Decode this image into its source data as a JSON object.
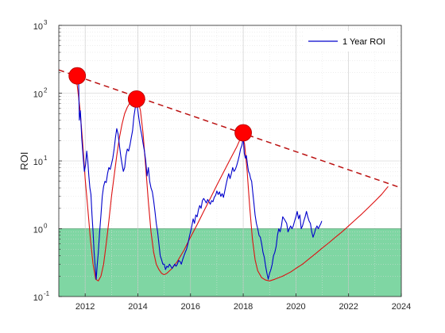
{
  "chart_data": {
    "type": "line",
    "title": "",
    "xlabel": "",
    "ylabel": "ROI",
    "xscale": "linear",
    "yscale": "log",
    "xlim": [
      2011,
      2024
    ],
    "ylim": [
      0.1,
      1000
    ],
    "x_ticks": [
      2012,
      2014,
      2016,
      2018,
      2020,
      2022,
      2024
    ],
    "y_ticks": [
      {
        "value": 0.1,
        "base": "10",
        "exp": "-1"
      },
      {
        "value": 1,
        "base": "10",
        "exp": "0"
      },
      {
        "value": 10,
        "base": "10",
        "exp": "1"
      },
      {
        "value": 100,
        "base": "10",
        "exp": "2"
      },
      {
        "value": 1000,
        "base": "10",
        "exp": "3"
      }
    ],
    "grid": true,
    "minor_grid": true,
    "legend_position": "top-right",
    "shaded_region": {
      "y_from": 0.1,
      "y_to": 1,
      "color": "#7fd6a3",
      "edge_color": "#1a9d4a"
    },
    "colors": {
      "roi_line": "#0000cc",
      "fit_curve": "#dd1111",
      "trend_line": "#bb1111",
      "peak_marker": "#ff0000"
    },
    "series": [
      {
        "name": "1 Year ROI",
        "role": "data",
        "points": [
          [
            2011.75,
            160
          ],
          [
            2011.78,
            40
          ],
          [
            2011.82,
            55
          ],
          [
            2011.87,
            22
          ],
          [
            2011.92,
            12
          ],
          [
            2011.97,
            7
          ],
          [
            2012.02,
            9
          ],
          [
            2012.06,
            14
          ],
          [
            2012.1,
            10
          ],
          [
            2012.14,
            6
          ],
          [
            2012.18,
            4
          ],
          [
            2012.22,
            3.2
          ],
          [
            2012.26,
            1.6
          ],
          [
            2012.3,
            0.9
          ],
          [
            2012.34,
            0.45
          ],
          [
            2012.38,
            0.28
          ],
          [
            2012.42,
            0.18
          ],
          [
            2012.46,
            0.3
          ],
          [
            2012.5,
            0.45
          ],
          [
            2012.55,
            0.9
          ],
          [
            2012.6,
            1.6
          ],
          [
            2012.65,
            3
          ],
          [
            2012.7,
            4.2
          ],
          [
            2012.75,
            5
          ],
          [
            2012.8,
            4.8
          ],
          [
            2012.85,
            6.5
          ],
          [
            2012.9,
            8
          ],
          [
            2012.95,
            7.5
          ],
          [
            2013.0,
            9
          ],
          [
            2013.05,
            11
          ],
          [
            2013.1,
            15
          ],
          [
            2013.15,
            22
          ],
          [
            2013.2,
            30
          ],
          [
            2013.25,
            25
          ],
          [
            2013.3,
            17
          ],
          [
            2013.35,
            12
          ],
          [
            2013.4,
            9
          ],
          [
            2013.45,
            7
          ],
          [
            2013.5,
            8
          ],
          [
            2013.55,
            12
          ],
          [
            2013.6,
            15
          ],
          [
            2013.65,
            14
          ],
          [
            2013.7,
            17
          ],
          [
            2013.75,
            22
          ],
          [
            2013.8,
            28
          ],
          [
            2013.85,
            45
          ],
          [
            2013.9,
            60
          ],
          [
            2013.95,
            75
          ],
          [
            2014.0,
            55
          ],
          [
            2014.05,
            40
          ],
          [
            2014.1,
            30
          ],
          [
            2014.15,
            24
          ],
          [
            2014.2,
            18
          ],
          [
            2014.25,
            14
          ],
          [
            2014.3,
            10
          ],
          [
            2014.35,
            6
          ],
          [
            2014.4,
            8
          ],
          [
            2014.45,
            5
          ],
          [
            2014.5,
            4
          ],
          [
            2014.55,
            3.5
          ],
          [
            2014.6,
            2.6
          ],
          [
            2014.65,
            1.8
          ],
          [
            2014.7,
            1.2
          ],
          [
            2014.75,
            0.9
          ],
          [
            2014.8,
            0.6
          ],
          [
            2014.85,
            0.4
          ],
          [
            2014.9,
            0.35
          ],
          [
            2014.95,
            0.3
          ],
          [
            2015.0,
            0.3
          ],
          [
            2015.05,
            0.25
          ],
          [
            2015.1,
            0.28
          ],
          [
            2015.15,
            0.27
          ],
          [
            2015.2,
            0.3
          ],
          [
            2015.25,
            0.28
          ],
          [
            2015.3,
            0.26
          ],
          [
            2015.35,
            0.28
          ],
          [
            2015.4,
            0.3
          ],
          [
            2015.45,
            0.28
          ],
          [
            2015.5,
            0.3
          ],
          [
            2015.55,
            0.34
          ],
          [
            2015.6,
            0.33
          ],
          [
            2015.65,
            0.3
          ],
          [
            2015.7,
            0.35
          ],
          [
            2015.75,
            0.4
          ],
          [
            2015.8,
            0.45
          ],
          [
            2015.85,
            0.5
          ],
          [
            2015.9,
            0.6
          ],
          [
            2015.95,
            0.75
          ],
          [
            2016.0,
            0.9
          ],
          [
            2016.05,
            1.1
          ],
          [
            2016.1,
            1.4
          ],
          [
            2016.15,
            1.2
          ],
          [
            2016.2,
            1.6
          ],
          [
            2016.25,
            1.5
          ],
          [
            2016.3,
            1.9
          ],
          [
            2016.35,
            2.2
          ],
          [
            2016.4,
            2.0
          ],
          [
            2016.45,
            2.6
          ],
          [
            2016.5,
            2.8
          ],
          [
            2016.55,
            2.6
          ],
          [
            2016.6,
            2.4
          ],
          [
            2016.65,
            2.7
          ],
          [
            2016.7,
            2.5
          ],
          [
            2016.75,
            2.3
          ],
          [
            2016.8,
            2.6
          ],
          [
            2016.85,
            2.5
          ],
          [
            2016.9,
            2.9
          ],
          [
            2016.95,
            3.1
          ],
          [
            2017.0,
            3.6
          ],
          [
            2017.05,
            3.2
          ],
          [
            2017.1,
            3.5
          ],
          [
            2017.15,
            3.0
          ],
          [
            2017.2,
            3.3
          ],
          [
            2017.25,
            2.9
          ],
          [
            2017.3,
            3.6
          ],
          [
            2017.35,
            4.5
          ],
          [
            2017.4,
            5.5
          ],
          [
            2017.45,
            6.5
          ],
          [
            2017.5,
            5.5
          ],
          [
            2017.55,
            6.5
          ],
          [
            2017.6,
            8
          ],
          [
            2017.65,
            7
          ],
          [
            2017.7,
            7.5
          ],
          [
            2017.75,
            8.5
          ],
          [
            2017.8,
            10
          ],
          [
            2017.85,
            12
          ],
          [
            2017.9,
            15
          ],
          [
            2017.95,
            17
          ],
          [
            2018.0,
            22
          ],
          [
            2018.04,
            13
          ],
          [
            2018.08,
            11
          ],
          [
            2018.12,
            12
          ],
          [
            2018.16,
            9
          ],
          [
            2018.2,
            7
          ],
          [
            2018.24,
            6.5
          ],
          [
            2018.28,
            5.5
          ],
          [
            2018.32,
            5
          ],
          [
            2018.36,
            3.5
          ],
          [
            2018.4,
            2.5
          ],
          [
            2018.45,
            1.6
          ],
          [
            2018.5,
            1.2
          ],
          [
            2018.55,
            1.0
          ],
          [
            2018.6,
            0.8
          ],
          [
            2018.65,
            0.75
          ],
          [
            2018.7,
            0.6
          ],
          [
            2018.75,
            0.45
          ],
          [
            2018.8,
            0.38
          ],
          [
            2018.85,
            0.28
          ],
          [
            2018.9,
            0.22
          ],
          [
            2018.95,
            0.18
          ],
          [
            2019.0,
            0.22
          ],
          [
            2019.05,
            0.25
          ],
          [
            2019.1,
            0.3
          ],
          [
            2019.15,
            0.4
          ],
          [
            2019.2,
            0.45
          ],
          [
            2019.25,
            0.55
          ],
          [
            2019.3,
            0.8
          ],
          [
            2019.35,
            1.0
          ],
          [
            2019.4,
            0.9
          ],
          [
            2019.45,
            1.1
          ],
          [
            2019.5,
            1.5
          ],
          [
            2019.55,
            1.4
          ],
          [
            2019.6,
            1.3
          ],
          [
            2019.65,
            1.2
          ],
          [
            2019.7,
            0.9
          ],
          [
            2019.75,
            1.0
          ],
          [
            2019.8,
            1.1
          ],
          [
            2019.85,
            1.0
          ],
          [
            2019.9,
            1.1
          ],
          [
            2019.95,
            1.3
          ],
          [
            2020.0,
            1.5
          ],
          [
            2020.05,
            1.8
          ],
          [
            2020.1,
            1.4
          ],
          [
            2020.15,
            1.6
          ],
          [
            2020.2,
            1.0
          ],
          [
            2020.25,
            1.1
          ],
          [
            2020.3,
            1.3
          ],
          [
            2020.35,
            1.5
          ],
          [
            2020.4,
            1.8
          ],
          [
            2020.45,
            1.5
          ],
          [
            2020.5,
            1.3
          ],
          [
            2020.55,
            1.2
          ],
          [
            2020.6,
            0.9
          ],
          [
            2020.65,
            0.75
          ],
          [
            2020.7,
            0.85
          ],
          [
            2020.75,
            1.0
          ],
          [
            2020.8,
            1.1
          ],
          [
            2020.85,
            1.0
          ],
          [
            2020.9,
            1.1
          ],
          [
            2020.95,
            1.2
          ],
          [
            2020.98,
            1.3
          ]
        ]
      },
      {
        "role": "fit_curve",
        "points": [
          [
            2011.6,
            180
          ],
          [
            2011.7,
            130
          ],
          [
            2011.8,
            60
          ],
          [
            2011.9,
            20
          ],
          [
            2012.0,
            5.5
          ],
          [
            2012.1,
            2.0
          ],
          [
            2012.2,
            0.7
          ],
          [
            2012.3,
            0.3
          ],
          [
            2012.4,
            0.18
          ],
          [
            2012.5,
            0.17
          ],
          [
            2012.6,
            0.2
          ],
          [
            2012.7,
            0.3
          ],
          [
            2012.8,
            0.6
          ],
          [
            2012.9,
            1.3
          ],
          [
            2013.0,
            3
          ],
          [
            2013.1,
            6
          ],
          [
            2013.2,
            12
          ],
          [
            2013.3,
            22
          ],
          [
            2013.4,
            35
          ],
          [
            2013.5,
            50
          ],
          [
            2013.6,
            62
          ],
          [
            2013.7,
            72
          ],
          [
            2013.8,
            78
          ],
          [
            2013.9,
            82
          ],
          [
            2014.0,
            80
          ],
          [
            2014.1,
            55
          ],
          [
            2014.2,
            25
          ],
          [
            2014.3,
            8
          ],
          [
            2014.4,
            2.5
          ],
          [
            2014.5,
            0.9
          ],
          [
            2014.6,
            0.45
          ],
          [
            2014.7,
            0.3
          ],
          [
            2014.8,
            0.25
          ],
          [
            2014.9,
            0.22
          ],
          [
            2015.0,
            0.21
          ],
          [
            2015.1,
            0.22
          ],
          [
            2015.3,
            0.26
          ],
          [
            2015.5,
            0.33
          ],
          [
            2015.75,
            0.48
          ],
          [
            2016.0,
            0.75
          ],
          [
            2016.25,
            1.15
          ],
          [
            2016.5,
            1.8
          ],
          [
            2016.75,
            2.8
          ],
          [
            2017.0,
            4.4
          ],
          [
            2017.25,
            6.8
          ],
          [
            2017.5,
            10.5
          ],
          [
            2017.75,
            16
          ],
          [
            2017.95,
            24
          ],
          [
            2018.05,
            18
          ],
          [
            2018.15,
            7
          ],
          [
            2018.25,
            2
          ],
          [
            2018.35,
            0.7
          ],
          [
            2018.45,
            0.35
          ],
          [
            2018.55,
            0.24
          ],
          [
            2018.7,
            0.19
          ],
          [
            2018.85,
            0.175
          ],
          [
            2019.0,
            0.17
          ],
          [
            2019.2,
            0.18
          ],
          [
            2019.5,
            0.2
          ],
          [
            2019.8,
            0.23
          ],
          [
            2020.0,
            0.26
          ],
          [
            2020.25,
            0.3
          ],
          [
            2020.5,
            0.36
          ],
          [
            2020.75,
            0.43
          ],
          [
            2021.0,
            0.52
          ],
          [
            2021.25,
            0.62
          ],
          [
            2021.5,
            0.75
          ],
          [
            2021.75,
            0.9
          ],
          [
            2022.0,
            1.1
          ],
          [
            2022.25,
            1.35
          ],
          [
            2022.5,
            1.65
          ],
          [
            2022.75,
            2.05
          ],
          [
            2023.0,
            2.55
          ],
          [
            2023.25,
            3.2
          ],
          [
            2023.5,
            4.2
          ]
        ]
      },
      {
        "role": "trend_line",
        "points": [
          [
            2011.0,
            220
          ],
          [
            2024.0,
            4
          ]
        ]
      }
    ],
    "peak_markers": [
      {
        "x": 2011.7,
        "y": 180
      },
      {
        "x": 2013.95,
        "y": 82
      },
      {
        "x": 2018.0,
        "y": 26
      }
    ]
  }
}
